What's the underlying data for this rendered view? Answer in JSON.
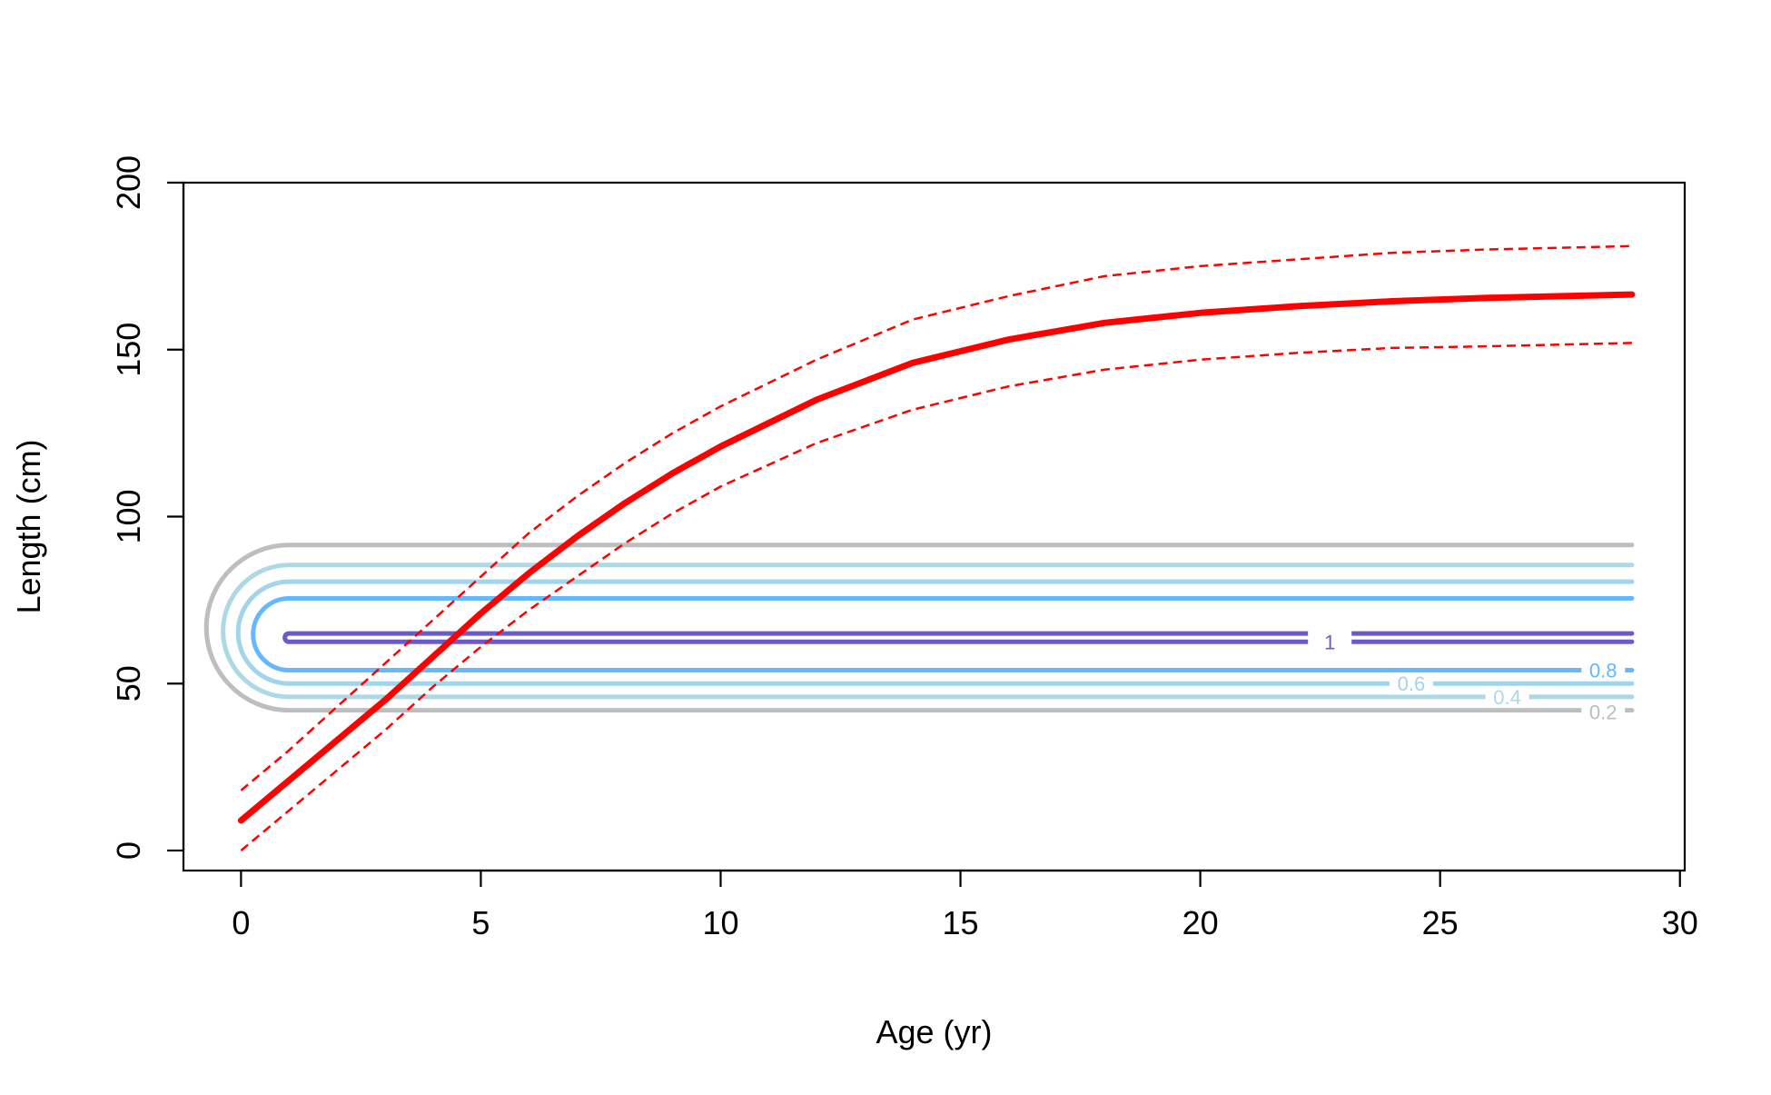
{
  "chart_data": {
    "type": "line",
    "title": "",
    "xlabel": "Age (yr)",
    "ylabel": "Length (cm)",
    "xlim": [
      -1.2,
      30.1
    ],
    "ylim": [
      -6,
      200
    ],
    "x_ticks": [
      0,
      5,
      10,
      15,
      20,
      25,
      30
    ],
    "x_tick_labels": [
      "0",
      "5",
      "10",
      "15",
      "20",
      "25",
      "30"
    ],
    "y_ticks": [
      0,
      50,
      100,
      150,
      200
    ],
    "y_tick_labels": [
      "0",
      "50",
      "100",
      "150",
      "200"
    ],
    "grid": false,
    "legend": "none",
    "series": [
      {
        "role": "mean",
        "color": "#ff0000",
        "style": "solid",
        "x": [
          0,
          1,
          2,
          3,
          4,
          5,
          6,
          7,
          8,
          9,
          10,
          12,
          14,
          16,
          18,
          20,
          22,
          24,
          26,
          29
        ],
        "y": [
          9,
          21,
          33,
          45,
          58,
          71,
          83,
          94,
          104,
          113,
          121,
          135,
          146,
          153,
          158,
          161,
          163,
          164.5,
          165.5,
          166.5
        ]
      },
      {
        "role": "upper-interval",
        "color": "#ff0000",
        "style": "dashed",
        "x": [
          0,
          1,
          2,
          3,
          4,
          5,
          6,
          7,
          8,
          9,
          10,
          12,
          14,
          16,
          18,
          20,
          22,
          24,
          26,
          29
        ],
        "y": [
          18,
          30,
          43,
          56,
          69,
          82,
          95,
          106,
          116,
          125,
          133,
          147,
          159,
          166,
          172,
          175,
          177,
          179,
          180,
          181
        ]
      },
      {
        "role": "lower-interval",
        "color": "#ff0000",
        "style": "dashed",
        "x": [
          0,
          1,
          2,
          3,
          4,
          5,
          6,
          7,
          8,
          9,
          10,
          12,
          14,
          16,
          18,
          20,
          22,
          24,
          26,
          29
        ],
        "y": [
          0,
          12,
          24,
          36,
          49,
          61,
          72,
          82,
          92,
          101,
          109,
          122,
          132,
          139,
          144,
          147,
          149,
          150.5,
          151,
          152
        ]
      }
    ],
    "contours": [
      {
        "level": "0.2",
        "color": "#bebebe",
        "x0": 1,
        "x1": 29,
        "y_low": 42,
        "y_high": 91.5,
        "label_x": 28.4,
        "label_y": 41.5
      },
      {
        "level": "0.4",
        "color": "#add8e6",
        "x0": 1,
        "x1": 29,
        "y_low": 46,
        "y_high": 85.5,
        "label_x": 26.4,
        "label_y": 46
      },
      {
        "level": "0.6",
        "color": "#a2d4ec",
        "x0": 1,
        "x1": 29,
        "y_low": 50,
        "y_high": 80.5,
        "label_x": 24.4,
        "label_y": 50
      },
      {
        "level": "0.8",
        "color": "#63b8ff",
        "x0": 1,
        "x1": 29,
        "y_low": 54,
        "y_high": 75.5,
        "label_x": 28.4,
        "label_y": 54
      },
      {
        "level": "1",
        "color": "#6a5acd",
        "x0": 1,
        "x1": 29,
        "y_low": 62.5,
        "y_high": 65,
        "label_x": 22.7,
        "label_y": 62.5
      }
    ]
  }
}
